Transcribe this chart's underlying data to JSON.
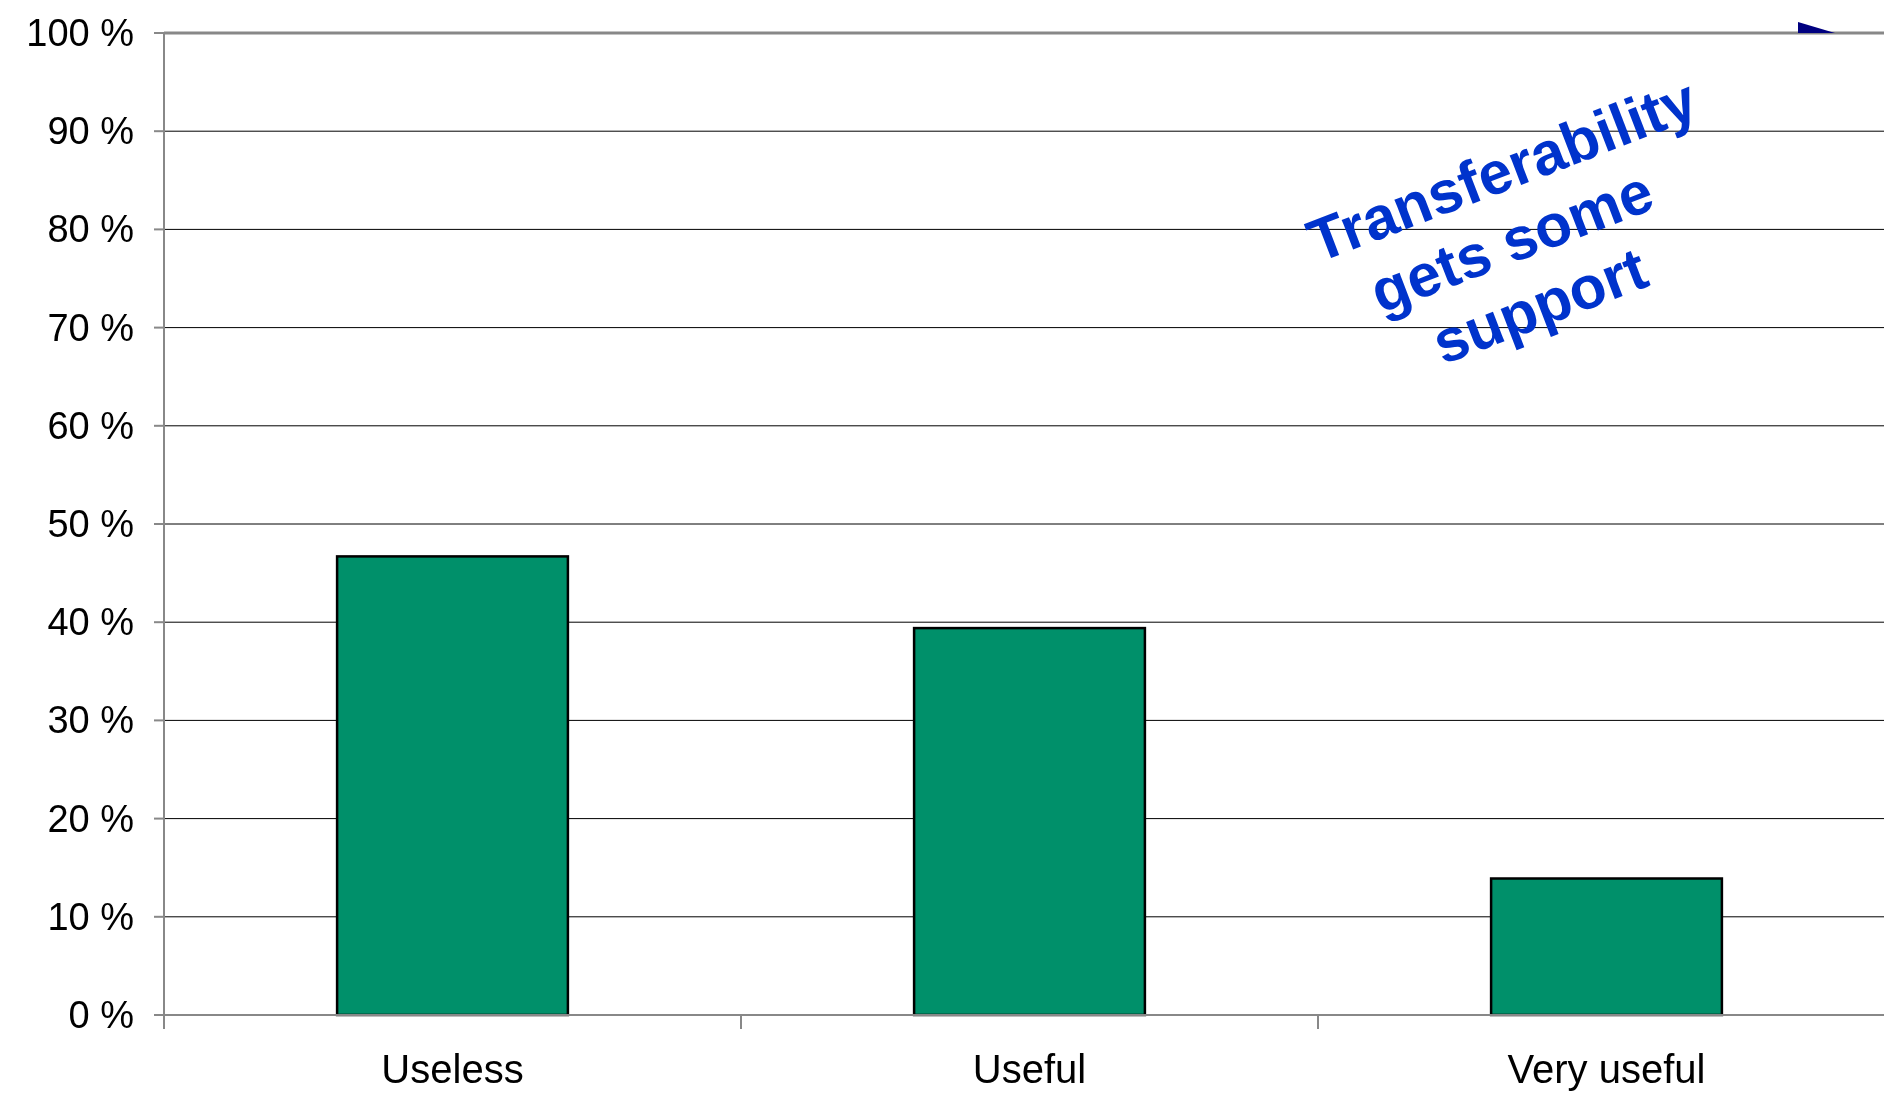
{
  "chart_data": {
    "type": "bar",
    "categories": [
      "Useless",
      "Useful",
      "Very useful"
    ],
    "values": [
      46.7,
      39.4,
      13.9
    ],
    "color": "#00906a",
    "ylim": [
      0,
      100
    ],
    "yticks": [
      {
        "value": 0,
        "label": "0 %"
      },
      {
        "value": 10,
        "label": "10 %"
      },
      {
        "value": 20,
        "label": "20 %"
      },
      {
        "value": 30,
        "label": "30 %"
      },
      {
        "value": 40,
        "label": "40 %"
      },
      {
        "value": 50,
        "label": "50 %"
      },
      {
        "value": 60,
        "label": "60 %"
      },
      {
        "value": 70,
        "label": "70 %"
      },
      {
        "value": 80,
        "label": "80 %"
      },
      {
        "value": 90,
        "label": "90 %"
      },
      {
        "value": 100,
        "label": "100 %"
      }
    ],
    "grid": "y",
    "annotations": [
      "Transferability\ngets some\nsupport"
    ]
  }
}
